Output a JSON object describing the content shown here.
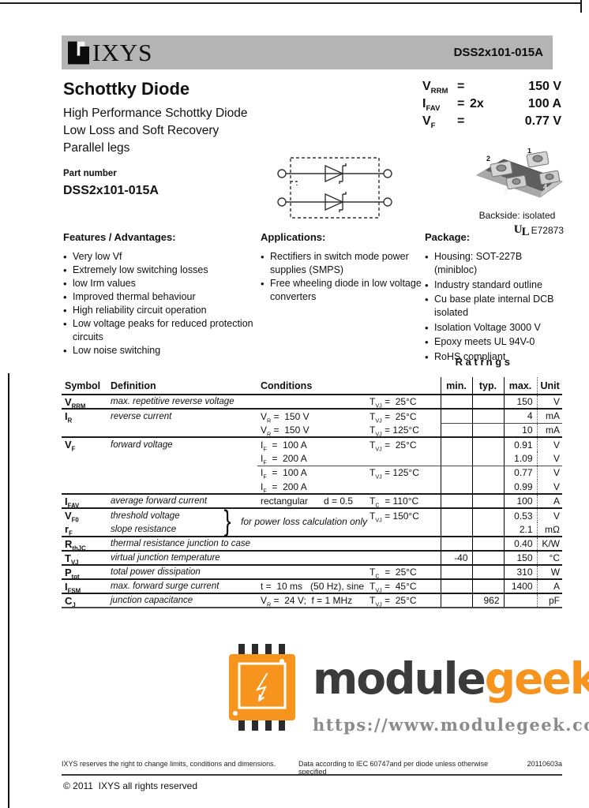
{
  "header": {
    "logo_text": "IXYS",
    "part_number": "DSS2x101-015A",
    "bar_color": "#b4b4b4"
  },
  "title_block": {
    "title": "Schottky Diode",
    "subtitle_lines": [
      "High Performance Schottky Diode",
      "Low Loss and Soft Recovery",
      "Parallel legs"
    ],
    "part_number_label": "Part number",
    "part_number": "DSS2x101-015A"
  },
  "key_specs": {
    "rows": [
      {
        "sym": "V~RRM~",
        "eq": "=",
        "mult": "",
        "val": "150 V"
      },
      {
        "sym": "I~FAV~",
        "eq": "=",
        "mult": "2x",
        "val": "100 A"
      },
      {
        "sym": "V~F~",
        "eq": "=",
        "mult": "",
        "val": "0.77 V"
      }
    ]
  },
  "package_image": {
    "pins": [
      "1",
      "2",
      "3",
      "4"
    ],
    "caption": "Backside: isolated",
    "ul_text": "UL",
    "ul_number": "E72873"
  },
  "features": {
    "heading": "Features / Advantages:",
    "items": [
      "Very low Vf",
      "Extremely low switching losses",
      "low Irm values",
      "Improved thermal behaviour",
      "High reliability circuit operation",
      "Low voltage peaks for reduced protection circuits",
      "Low noise switching"
    ]
  },
  "applications": {
    "heading": "Applications:",
    "items": [
      "Rectifiers in switch mode power supplies (SMPS)",
      "Free wheeling diode in low voltage converters"
    ]
  },
  "package": {
    "heading": "Package:",
    "items": [
      "Housing:  SOT-227B (minibloc)",
      "Industry standard outline",
      "Cu base plate internal DCB isolated",
      "Isolation Voltage 3000 V",
      "Epoxy meets UL 94V-0",
      "RoHS compliant"
    ]
  },
  "ratings_table": {
    "section_label": "R a t i n g s",
    "headers": {
      "symbol": "Symbol",
      "definition": "Definition",
      "conditions": "Conditions",
      "min": "min.",
      "typ": "typ.",
      "max": "max.",
      "unit": "Unit"
    },
    "brace_note": "for power loss calculation only",
    "rows": [
      {
        "sym": "V~RRM~",
        "def": "max. repetitive reverse voltage",
        "c1": "",
        "c2": "T~VJ~ =  25°C",
        "min": "",
        "typ": "",
        "max": "150",
        "unit": "V"
      },
      {
        "sym": "I~R~",
        "def": "reverse current",
        "c1": "V~R~ =  150 V",
        "c2": "T~VJ~ =  25°C",
        "min": "",
        "typ": "",
        "max": "4",
        "unit": "mA"
      },
      {
        "sym": "",
        "def": "",
        "c1": "V~R~ =  150 V",
        "c2": "T~VJ~ = 125°C",
        "min": "",
        "typ": "",
        "max": "10",
        "unit": "mA"
      },
      {
        "sym": "V~F~",
        "def": "forward voltage",
        "c1": "I~F~  =  100 A",
        "c2": "T~VJ~ =  25°C",
        "min": "",
        "typ": "",
        "max": "0.91",
        "unit": "V"
      },
      {
        "sym": "",
        "def": "",
        "c1": "I~F~  =  200 A",
        "c2": "",
        "min": "",
        "typ": "",
        "max": "1.09",
        "unit": "V"
      },
      {
        "sym": "",
        "def": "",
        "c1": "I~F~  =  100 A",
        "c2": "T~VJ~ = 125°C",
        "min": "",
        "typ": "",
        "max": "0.77",
        "unit": "V"
      },
      {
        "sym": "",
        "def": "",
        "c1": "I~F~  =  200 A",
        "c2": "",
        "min": "",
        "typ": "",
        "max": "0.99",
        "unit": "V"
      },
      {
        "sym": "I~FAV~",
        "def": "average forward current",
        "c1": "rectangular      d = 0.5",
        "c2": "T~C~  = 110°C",
        "min": "",
        "typ": "",
        "max": "100",
        "unit": "A"
      },
      {
        "sym": "V~F0~",
        "def": "threshold voltage",
        "c1": "",
        "c2": "T~VJ~ = 150°C",
        "min": "",
        "typ": "",
        "max": "0.53",
        "unit": "V"
      },
      {
        "sym": "r~F~",
        "def": "slope resistance",
        "c1": "",
        "c2": "",
        "min": "",
        "typ": "",
        "max": "2.1",
        "unit": "mΩ"
      },
      {
        "sym": "R~thJC~",
        "def": "thermal resistance junction to case",
        "c1": "",
        "c2": "",
        "min": "",
        "typ": "",
        "max": "0.40",
        "unit": "K/W"
      },
      {
        "sym": "T~VJ~",
        "def": "virtual junction temperature",
        "c1": "",
        "c2": "",
        "min": "-40",
        "typ": "",
        "max": "150",
        "unit": "°C"
      },
      {
        "sym": "P~tot~",
        "def": "total power dissipation",
        "c1": "",
        "c2": "T~C~  =  25°C",
        "min": "",
        "typ": "",
        "max": "310",
        "unit": "W"
      },
      {
        "sym": "I~FSM~",
        "def": "max. forward surge current",
        "c1": "t =  10 ms   (50 Hz), sine",
        "c2": "T~VJ~ =  45°C",
        "min": "",
        "typ": "",
        "max": "1400",
        "unit": "A"
      },
      {
        "sym": "C~J~",
        "def": "junction capacitance",
        "c1": "V~R~ =  24 V;  f = 1 MHz",
        "c2": "T~VJ~ =  25°C",
        "min": "",
        "typ": "962",
        "max": "",
        "unit": "pF"
      }
    ]
  },
  "watermark": {
    "brand_dark": "module",
    "brand_orange": "geek",
    "url": "https://www.modulegeek.com",
    "accent_color": "#f7941d"
  },
  "footer": {
    "left": "IXYS reserves the right to change limits, conditions and dimensions.",
    "center": "Data according to IEC 60747and per diode unless otherwise specified",
    "right": "20110603a",
    "copyright": "© 2011  IXYS all rights reserved"
  }
}
